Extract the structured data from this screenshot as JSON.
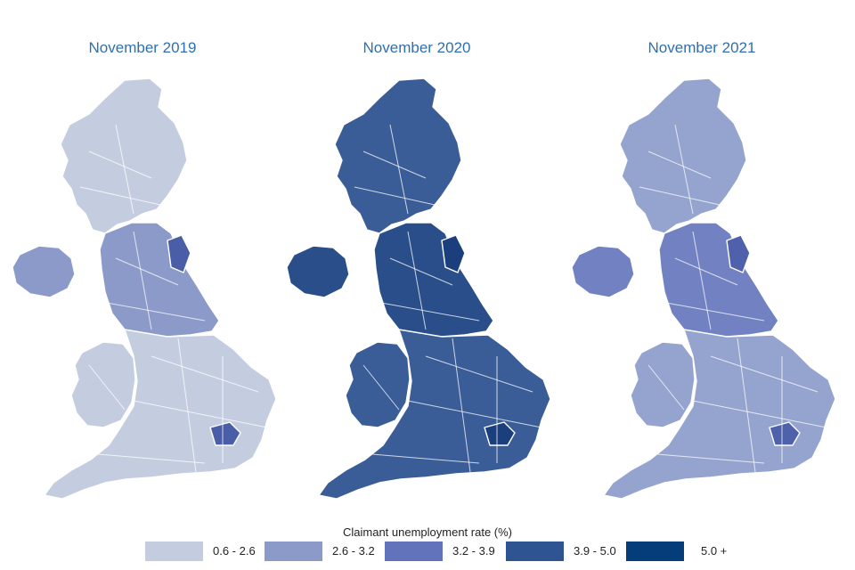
{
  "maps": [
    {
      "title": "November 2019",
      "base": "#c4cde0",
      "accent": "#8b9ac8",
      "dark": "#4a5ea8"
    },
    {
      "title": "November 2020",
      "base": "#3a5d98",
      "accent": "#294e8a",
      "dark": "#1a3f7c"
    },
    {
      "title": "November 2021",
      "base": "#95a4cf",
      "accent": "#7181c2",
      "dark": "#4e61aa"
    }
  ],
  "legend": {
    "title": "Claimant unemployment rate (%)",
    "items": [
      {
        "label": "0.6 - 2.6",
        "color": "#c4cde0"
      },
      {
        "label": "2.6 - 3.2",
        "color": "#8b9ac8"
      },
      {
        "label": "3.2 - 3.9",
        "color": "#6373bb"
      },
      {
        "label": "3.9 - 5.0",
        "color": "#2e5491"
      },
      {
        "label": "5.0 +",
        "color": "#053d7a"
      }
    ]
  }
}
